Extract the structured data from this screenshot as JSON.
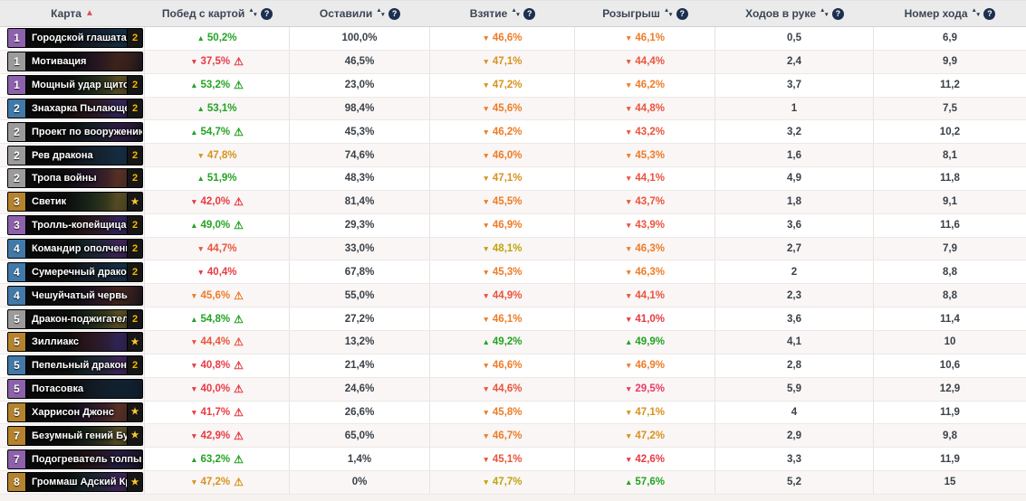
{
  "header": {
    "columns": [
      {
        "label": "Карта",
        "sort_state": "active_asc",
        "help": false
      },
      {
        "label": "Побед с картой",
        "sort_state": "sortable",
        "help": true
      },
      {
        "label": "Оставили",
        "sort_state": "sortable",
        "help": true
      },
      {
        "label": "Взятие",
        "sort_state": "sortable",
        "help": true
      },
      {
        "label": "Розыгрыш",
        "sort_state": "sortable",
        "help": true
      },
      {
        "label": "Ходов в руке",
        "sort_state": "sortable",
        "help": true
      },
      {
        "label": "Номер хода",
        "sort_state": "sortable",
        "help": true
      }
    ]
  },
  "colors": {
    "green": "#23a323",
    "yellow": "#bfa40c",
    "amber": "#d9921e",
    "orange": "#ed7c28",
    "orangered": "#ea543c",
    "red": "#e83a43",
    "pink": "#ec3a64",
    "active_sort_arrow": "#d8545f",
    "help_icon_bg": "#1d2f4f",
    "rarity": {
      "common": "#9b9b9b",
      "rare": "#4179a8",
      "epic": "#8d61ab",
      "legendary": "#b5832d"
    }
  },
  "rows": [
    {
      "cost": "1",
      "rarity": "epic",
      "name": "Городской глашатай",
      "badge": "2",
      "win": {
        "dir": "up",
        "value": "50,2%",
        "color": "green",
        "warn": false
      },
      "kept": "100,0%",
      "drawn": {
        "dir": "down",
        "value": "46,6%",
        "color": "orange"
      },
      "played": {
        "dir": "down",
        "value": "46,1%",
        "color": "orange"
      },
      "held": "0,5",
      "turn": "6,9"
    },
    {
      "cost": "1",
      "rarity": "common",
      "name": "Мотивация",
      "badge": null,
      "win": {
        "dir": "down",
        "value": "37,5%",
        "color": "red",
        "warn": true
      },
      "kept": "46,5%",
      "drawn": {
        "dir": "down",
        "value": "47,1%",
        "color": "amber"
      },
      "played": {
        "dir": "down",
        "value": "44,4%",
        "color": "orangered"
      },
      "held": "2,4",
      "turn": "9,9"
    },
    {
      "cost": "1",
      "rarity": "epic",
      "name": "Мощный удар щитом",
      "badge": "2",
      "win": {
        "dir": "up",
        "value": "53,2%",
        "color": "green",
        "warn": true
      },
      "kept": "23,0%",
      "drawn": {
        "dir": "down",
        "value": "47,2%",
        "color": "amber"
      },
      "played": {
        "dir": "down",
        "value": "46,2%",
        "color": "orange"
      },
      "held": "3,7",
      "turn": "11,2"
    },
    {
      "cost": "2",
      "rarity": "rare",
      "name": "Знахарка Пылающег...",
      "badge": "2",
      "win": {
        "dir": "up",
        "value": "53,1%",
        "color": "green",
        "warn": false
      },
      "kept": "98,4%",
      "drawn": {
        "dir": "down",
        "value": "45,6%",
        "color": "orange"
      },
      "played": {
        "dir": "down",
        "value": "44,8%",
        "color": "orangered"
      },
      "held": "1",
      "turn": "7,5"
    },
    {
      "cost": "2",
      "rarity": "common",
      "name": "Проект по вооружению",
      "badge": null,
      "win": {
        "dir": "up",
        "value": "54,7%",
        "color": "green",
        "warn": true
      },
      "kept": "45,3%",
      "drawn": {
        "dir": "down",
        "value": "46,2%",
        "color": "orange"
      },
      "played": {
        "dir": "down",
        "value": "43,2%",
        "color": "orangered"
      },
      "held": "3,2",
      "turn": "10,2"
    },
    {
      "cost": "2",
      "rarity": "common",
      "name": "Рев дракона",
      "badge": "2",
      "win": {
        "dir": "down",
        "value": "47,8%",
        "color": "amber",
        "warn": false
      },
      "kept": "74,6%",
      "drawn": {
        "dir": "down",
        "value": "46,0%",
        "color": "orange"
      },
      "played": {
        "dir": "down",
        "value": "45,3%",
        "color": "orange"
      },
      "held": "1,6",
      "turn": "8,1"
    },
    {
      "cost": "2",
      "rarity": "common",
      "name": "Тропа войны",
      "badge": "2",
      "win": {
        "dir": "up",
        "value": "51,9%",
        "color": "green",
        "warn": false
      },
      "kept": "48,3%",
      "drawn": {
        "dir": "down",
        "value": "47,1%",
        "color": "amber"
      },
      "played": {
        "dir": "down",
        "value": "44,1%",
        "color": "orangered"
      },
      "held": "4,9",
      "turn": "11,8"
    },
    {
      "cost": "3",
      "rarity": "legendary",
      "name": "Светик",
      "badge": "star",
      "win": {
        "dir": "down",
        "value": "42,0%",
        "color": "red",
        "warn": true
      },
      "kept": "81,4%",
      "drawn": {
        "dir": "down",
        "value": "45,5%",
        "color": "orange"
      },
      "played": {
        "dir": "down",
        "value": "43,7%",
        "color": "orangered"
      },
      "held": "1,8",
      "turn": "9,1"
    },
    {
      "cost": "3",
      "rarity": "epic",
      "name": "Тролль-копейщица",
      "badge": "2",
      "win": {
        "dir": "up",
        "value": "49,0%",
        "color": "green",
        "warn": true
      },
      "kept": "29,3%",
      "drawn": {
        "dir": "down",
        "value": "46,9%",
        "color": "orange"
      },
      "played": {
        "dir": "down",
        "value": "43,9%",
        "color": "orangered"
      },
      "held": "3,6",
      "turn": "11,6"
    },
    {
      "cost": "4",
      "rarity": "rare",
      "name": "Командир ополчения",
      "badge": "2",
      "win": {
        "dir": "down",
        "value": "44,7%",
        "color": "orangered",
        "warn": false
      },
      "kept": "33,0%",
      "drawn": {
        "dir": "down",
        "value": "48,1%",
        "color": "yellow"
      },
      "played": {
        "dir": "down",
        "value": "46,3%",
        "color": "orange"
      },
      "held": "2,7",
      "turn": "7,9"
    },
    {
      "cost": "4",
      "rarity": "rare",
      "name": "Сумеречный дракон",
      "badge": "2",
      "win": {
        "dir": "down",
        "value": "40,4%",
        "color": "red",
        "warn": false
      },
      "kept": "67,8%",
      "drawn": {
        "dir": "down",
        "value": "45,3%",
        "color": "orange"
      },
      "played": {
        "dir": "down",
        "value": "46,3%",
        "color": "orange"
      },
      "held": "2",
      "turn": "8,8"
    },
    {
      "cost": "4",
      "rarity": "rare",
      "name": "Чешуйчатый червь",
      "badge": null,
      "win": {
        "dir": "down",
        "value": "45,6%",
        "color": "orange",
        "warn": true
      },
      "kept": "55,0%",
      "drawn": {
        "dir": "down",
        "value": "44,9%",
        "color": "orangered"
      },
      "played": {
        "dir": "down",
        "value": "44,1%",
        "color": "orangered"
      },
      "held": "2,3",
      "turn": "8,8"
    },
    {
      "cost": "5",
      "rarity": "common",
      "name": "Дракон-поджигатель",
      "badge": "2",
      "win": {
        "dir": "up",
        "value": "54,8%",
        "color": "green",
        "warn": true
      },
      "kept": "27,2%",
      "drawn": {
        "dir": "down",
        "value": "46,1%",
        "color": "orange"
      },
      "played": {
        "dir": "down",
        "value": "41,0%",
        "color": "red"
      },
      "held": "3,6",
      "turn": "11,4"
    },
    {
      "cost": "5",
      "rarity": "legendary",
      "name": "Зиллиакс",
      "badge": "star",
      "win": {
        "dir": "down",
        "value": "44,4%",
        "color": "orangered",
        "warn": true
      },
      "kept": "13,2%",
      "drawn": {
        "dir": "up",
        "value": "49,2%",
        "color": "green"
      },
      "played": {
        "dir": "up",
        "value": "49,9%",
        "color": "green"
      },
      "held": "4,1",
      "turn": "10"
    },
    {
      "cost": "5",
      "rarity": "rare",
      "name": "Пепельный дракон",
      "badge": "2",
      "win": {
        "dir": "down",
        "value": "40,8%",
        "color": "red",
        "warn": true
      },
      "kept": "21,4%",
      "drawn": {
        "dir": "down",
        "value": "46,6%",
        "color": "orange"
      },
      "played": {
        "dir": "down",
        "value": "46,9%",
        "color": "orange"
      },
      "held": "2,8",
      "turn": "10,6"
    },
    {
      "cost": "5",
      "rarity": "epic",
      "name": "Потасовка",
      "badge": null,
      "win": {
        "dir": "down",
        "value": "40,0%",
        "color": "red",
        "warn": true
      },
      "kept": "24,6%",
      "drawn": {
        "dir": "down",
        "value": "44,6%",
        "color": "orangered"
      },
      "played": {
        "dir": "down",
        "value": "29,5%",
        "color": "pink"
      },
      "held": "5,9",
      "turn": "12,9"
    },
    {
      "cost": "5",
      "rarity": "legendary",
      "name": "Харрисон Джонс",
      "badge": "star",
      "win": {
        "dir": "down",
        "value": "41,7%",
        "color": "red",
        "warn": true
      },
      "kept": "26,6%",
      "drawn": {
        "dir": "down",
        "value": "45,8%",
        "color": "orange"
      },
      "played": {
        "dir": "down",
        "value": "47,1%",
        "color": "amber"
      },
      "held": "4",
      "turn": "11,9"
    },
    {
      "cost": "7",
      "rarity": "legendary",
      "name": "Безумный гений Бум",
      "badge": "star",
      "win": {
        "dir": "down",
        "value": "42,9%",
        "color": "red",
        "warn": true
      },
      "kept": "65,0%",
      "drawn": {
        "dir": "down",
        "value": "46,7%",
        "color": "orange"
      },
      "played": {
        "dir": "down",
        "value": "47,2%",
        "color": "amber"
      },
      "held": "2,9",
      "turn": "9,8"
    },
    {
      "cost": "7",
      "rarity": "epic",
      "name": "Подогреватель толпы",
      "badge": null,
      "win": {
        "dir": "up",
        "value": "63,2%",
        "color": "green",
        "warn": true
      },
      "kept": "1,4%",
      "drawn": {
        "dir": "down",
        "value": "45,1%",
        "color": "orangered"
      },
      "played": {
        "dir": "down",
        "value": "42,6%",
        "color": "red"
      },
      "held": "3,3",
      "turn": "11,9"
    },
    {
      "cost": "8",
      "rarity": "legendary",
      "name": "Громмаш Адский Кр...",
      "badge": "star",
      "win": {
        "dir": "down",
        "value": "47,2%",
        "color": "amber",
        "warn": true
      },
      "kept": "0%",
      "drawn": {
        "dir": "down",
        "value": "47,7%",
        "color": "yellow"
      },
      "played": {
        "dir": "up",
        "value": "57,6%",
        "color": "green"
      },
      "held": "5,2",
      "turn": "15"
    }
  ]
}
